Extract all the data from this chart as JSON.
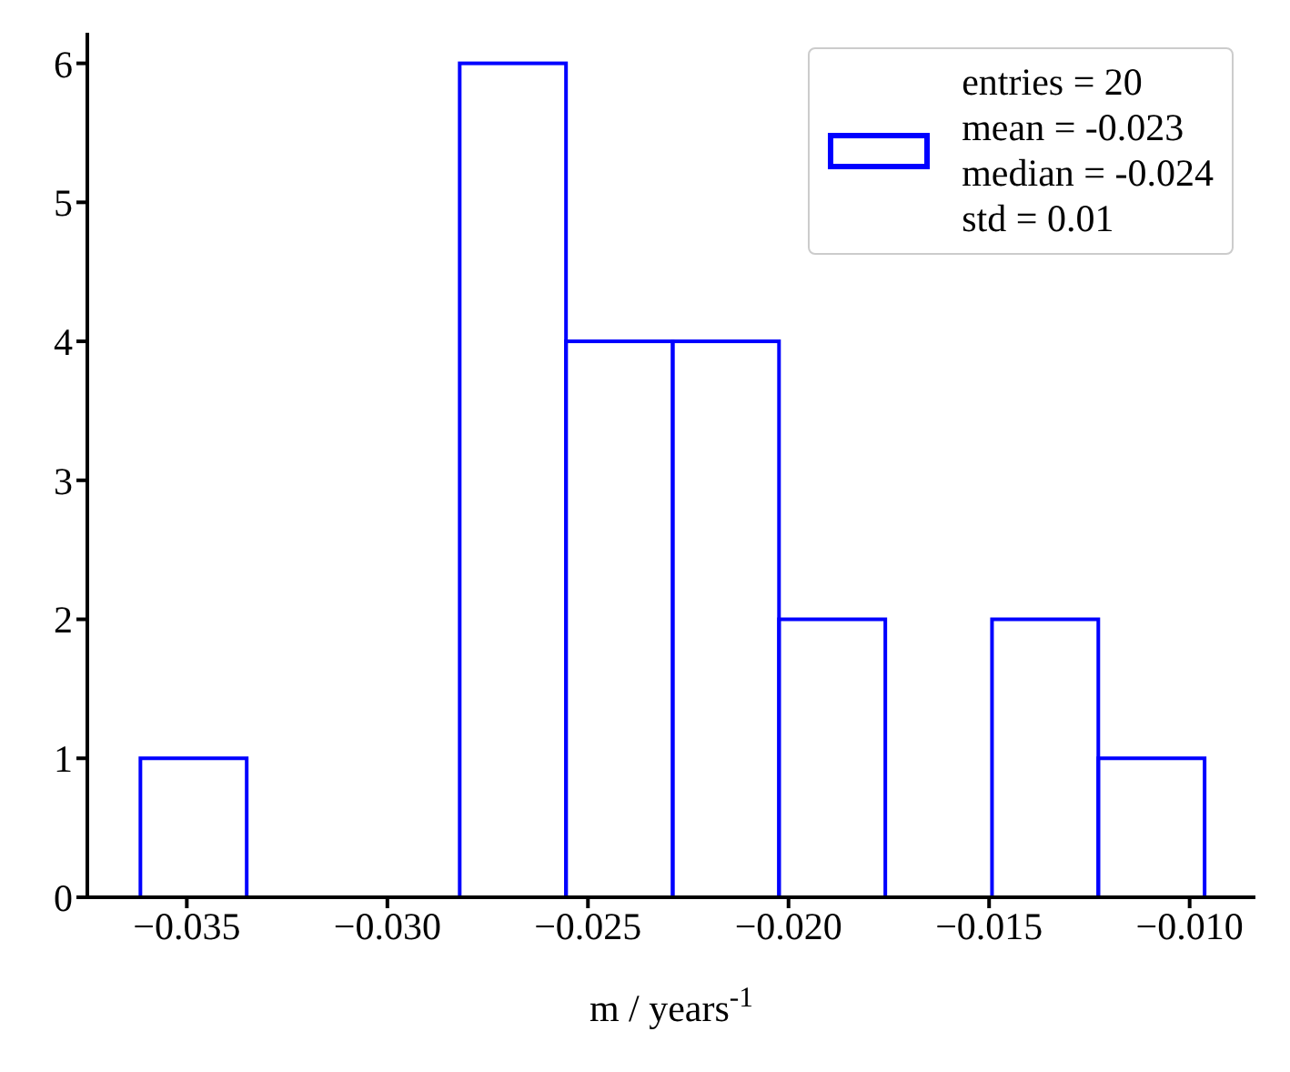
{
  "chart_data": {
    "type": "histogram",
    "xlabel": "m / years$^{-1}$",
    "bins": [
      -0.03617,
      -0.03352,
      -0.03086,
      -0.02821,
      -0.02556,
      -0.0229,
      -0.02025,
      -0.0176,
      -0.01494,
      -0.01229,
      -0.00964
    ],
    "series": [
      {
        "name": "entries = 20\nmean = -0.023\nmedian = -0.024\nstd = 0.01",
        "color": "#0000ff",
        "values": [
          1,
          0,
          0,
          6,
          4,
          4,
          2,
          0,
          2,
          1
        ]
      }
    ],
    "xlim": [
      -0.03748,
      -0.00836
    ],
    "xticks": [
      {
        "value": -0.035,
        "label": "−0.035"
      },
      {
        "value": -0.03,
        "label": "−0.030"
      },
      {
        "value": -0.025,
        "label": "−0.025"
      },
      {
        "value": -0.02,
        "label": "−0.020"
      },
      {
        "value": -0.015,
        "label": "−0.015"
      },
      {
        "value": -0.01,
        "label": "−0.010"
      }
    ],
    "ylim": [
      0,
      6.22
    ],
    "yticks": [
      0,
      1,
      2,
      3,
      4,
      5,
      6
    ],
    "grid": false,
    "legend": "top right"
  }
}
